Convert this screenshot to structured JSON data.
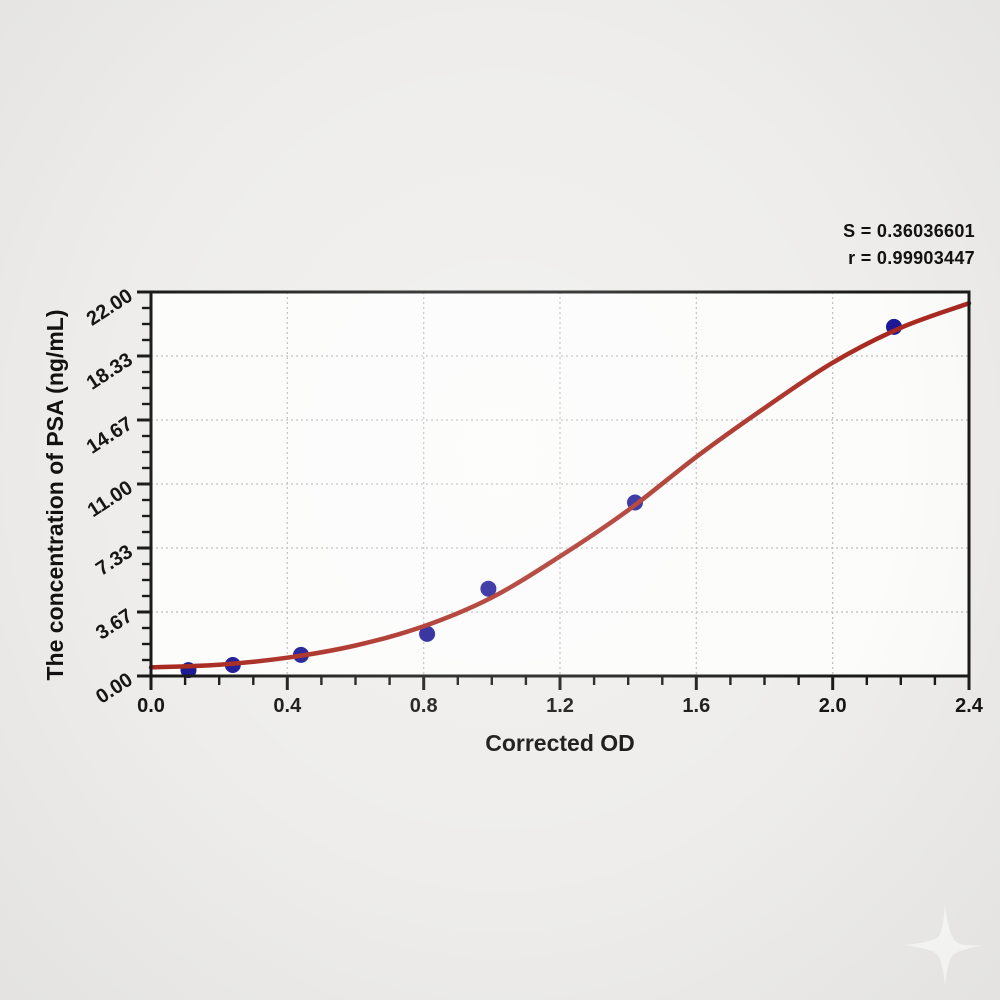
{
  "stats": {
    "s_line": "S = 0.36036601",
    "r_line": "r = 0.99903447"
  },
  "chart_data": {
    "type": "scatter",
    "title": "",
    "xlabel": "Corrected OD",
    "ylabel": "The concentration of PSA (ng/mL)",
    "xlim": [
      0.0,
      2.4
    ],
    "ylim": [
      0.0,
      22.0
    ],
    "grid": "dotted at major ticks",
    "legend_position": "none",
    "x_major_ticks": [
      0.0,
      0.4,
      0.8,
      1.2,
      1.6,
      2.0,
      2.4
    ],
    "x_tick_labels": [
      "0.0",
      "0.4",
      "0.8",
      "1.2",
      "1.6",
      "2.0",
      "2.4"
    ],
    "x_minor_step": 0.1,
    "y_major_ticks": [
      0.0,
      3.6667,
      7.3333,
      11.0,
      14.6667,
      18.3333,
      22.0
    ],
    "y_tick_labels": [
      "0.00",
      "3.67",
      "7.33",
      "11.00",
      "14.67",
      "18.33",
      "22.00"
    ],
    "y_minor_per_interval": 3,
    "series": [
      {
        "name": "standard-points",
        "type": "scatter",
        "color": "#1c1896",
        "points": [
          [
            0.11,
            0.34
          ],
          [
            0.24,
            0.63
          ],
          [
            0.44,
            1.21
          ],
          [
            0.81,
            2.41
          ],
          [
            0.99,
            5.0
          ],
          [
            1.42,
            9.94
          ],
          [
            2.18,
            20.0
          ]
        ]
      },
      {
        "name": "fitted-curve",
        "type": "line",
        "color": "#a8291f",
        "points": [
          [
            0.0,
            0.5
          ],
          [
            0.2,
            0.65
          ],
          [
            0.4,
            1.05
          ],
          [
            0.6,
            1.75
          ],
          [
            0.8,
            2.85
          ],
          [
            1.0,
            4.5
          ],
          [
            1.2,
            6.85
          ],
          [
            1.4,
            9.5
          ],
          [
            1.6,
            12.55
          ],
          [
            1.8,
            15.35
          ],
          [
            2.0,
            17.95
          ],
          [
            2.2,
            19.95
          ],
          [
            2.4,
            21.35
          ]
        ]
      }
    ],
    "annotations": [
      "S = 0.36036601",
      "r = 0.99903447"
    ]
  },
  "style": {
    "frame_color": "#1a1a1a",
    "grid_color": "#bcbcbc",
    "curve_color": "#a8291f",
    "point_color": "#1c1896",
    "background": "#eeedeb",
    "plot_background": "#fcfcfb"
  },
  "watermark": {
    "icon": "sparkle-star",
    "color": "#ffffff"
  }
}
